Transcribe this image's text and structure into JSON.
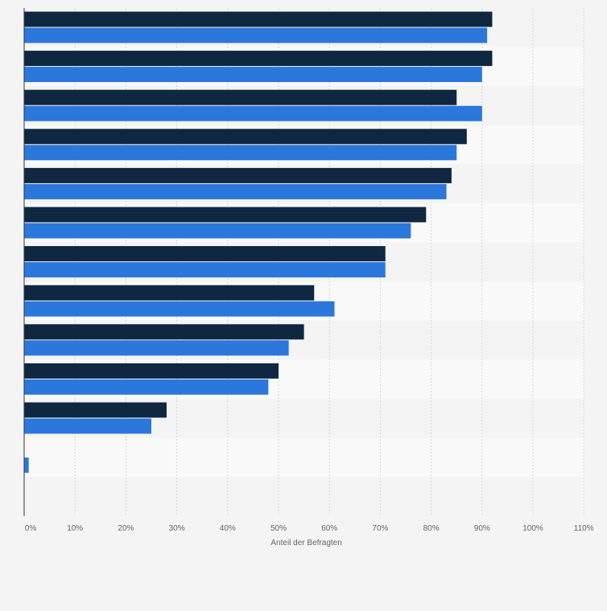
{
  "chart_data": {
    "type": "bar",
    "orientation": "horizontal",
    "title": "",
    "xlabel": "Anteil der Befragten",
    "ylabel": "",
    "xlim": [
      0,
      110
    ],
    "tick_values": [
      0,
      10,
      20,
      30,
      40,
      50,
      60,
      70,
      80,
      90,
      100,
      110
    ],
    "tick_labels": [
      "0%",
      "10%",
      "20%",
      "30%",
      "40%",
      "50%",
      "60%",
      "70%",
      "80%",
      "90%",
      "100%",
      "110%"
    ],
    "grid": true,
    "legend": "none",
    "row_count": 13,
    "series": [
      {
        "color": "#0f2741",
        "values": [
          92,
          92,
          85,
          87,
          84,
          79,
          71,
          57,
          55,
          50,
          28,
          0,
          0
        ]
      },
      {
        "color": "#2b77db",
        "values": [
          91,
          90,
          90,
          85,
          83,
          76,
          71,
          61,
          52,
          48,
          25,
          0.9,
          0
        ]
      }
    ]
  }
}
